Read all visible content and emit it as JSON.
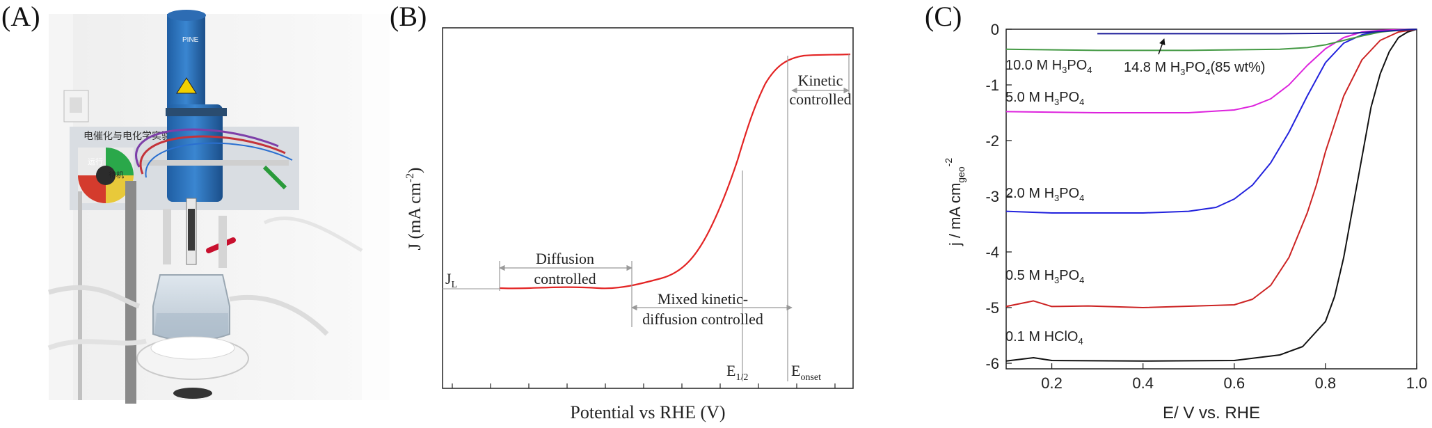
{
  "panels": {
    "a": {
      "label": "(A)"
    },
    "b": {
      "label": "(B)"
    },
    "c": {
      "label": "(C)"
    }
  },
  "photo": {
    "brand": "PINE",
    "board_text": "电催化与电化学实验",
    "button_labels": [
      "运行",
      "待机"
    ]
  },
  "chart_data": [
    {
      "type": "line",
      "panel": "B",
      "xlabel": "Potential vs RHE (V)",
      "ylabel": "J (mA cm⁻²)",
      "regions": [
        "Diffusion controlled",
        "Mixed kinetic-diffusion controlled",
        "Kinetic controlled"
      ],
      "annotations": {
        "limiting_current": "J_L",
        "half_wave": "E_1/2",
        "onset": "E_onset"
      },
      "series": [
        {
          "color": "#e32424"
        }
      ],
      "grid": false
    },
    {
      "type": "line",
      "panel": "C",
      "xlabel": "E/ V vs. RHE",
      "ylabel": "j / mA cm_geo^-2",
      "xlim": [
        0.1,
        1.0
      ],
      "ylim": [
        -6.1,
        0
      ],
      "xticks": [
        0.2,
        0.4,
        0.6,
        0.8,
        1.0
      ],
      "yticks": [
        0,
        -1,
        -2,
        -3,
        -4,
        -5,
        -6
      ],
      "grid": false,
      "series": [
        {
          "name": "0.1 M HClO4",
          "color": "#111111",
          "x": [
            0.1,
            0.16,
            0.2,
            0.4,
            0.6,
            0.7,
            0.75,
            0.8,
            0.82,
            0.84,
            0.86,
            0.88,
            0.9,
            0.92,
            0.94,
            0.96,
            0.98,
            1.0
          ],
          "y": [
            -5.96,
            -5.9,
            -5.95,
            -5.96,
            -5.95,
            -5.85,
            -5.7,
            -5.25,
            -4.8,
            -4.1,
            -3.2,
            -2.3,
            -1.4,
            -0.8,
            -0.4,
            -0.15,
            -0.05,
            0
          ]
        },
        {
          "name": "0.5 M H3PO4",
          "color": "#cc2222",
          "x": [
            0.1,
            0.16,
            0.2,
            0.28,
            0.4,
            0.6,
            0.64,
            0.68,
            0.72,
            0.76,
            0.78,
            0.8,
            0.84,
            0.88,
            0.92,
            0.96,
            1.0
          ],
          "y": [
            -4.98,
            -4.88,
            -4.98,
            -4.97,
            -5.0,
            -4.95,
            -4.85,
            -4.6,
            -4.1,
            -3.3,
            -2.8,
            -2.2,
            -1.2,
            -0.55,
            -0.2,
            -0.05,
            0
          ]
        },
        {
          "name": "2.0 M H3PO4",
          "color": "#2222dd",
          "x": [
            0.1,
            0.2,
            0.4,
            0.5,
            0.56,
            0.6,
            0.64,
            0.68,
            0.72,
            0.76,
            0.8,
            0.84,
            0.88,
            0.92,
            0.96,
            1.0
          ],
          "y": [
            -3.27,
            -3.3,
            -3.3,
            -3.27,
            -3.2,
            -3.05,
            -2.8,
            -2.4,
            -1.85,
            -1.2,
            -0.6,
            -0.25,
            -0.1,
            -0.03,
            -0.01,
            0
          ]
        },
        {
          "name": "5.0 M H3PO4",
          "color": "#dd22dd",
          "x": [
            0.1,
            0.3,
            0.5,
            0.6,
            0.64,
            0.68,
            0.72,
            0.76,
            0.8,
            0.84,
            0.88,
            0.92,
            0.96,
            1.0
          ],
          "y": [
            -1.48,
            -1.5,
            -1.5,
            -1.45,
            -1.38,
            -1.25,
            -1.0,
            -0.65,
            -0.35,
            -0.15,
            -0.05,
            -0.02,
            -0.01,
            0
          ]
        },
        {
          "name": "10.0 M H3PO4",
          "color": "#449944",
          "x": [
            0.1,
            0.3,
            0.5,
            0.7,
            0.76,
            0.8,
            0.84,
            0.88,
            0.92,
            0.96,
            1.0
          ],
          "y": [
            -0.36,
            -0.38,
            -0.38,
            -0.36,
            -0.33,
            -0.28,
            -0.2,
            -0.12,
            -0.05,
            -0.02,
            0
          ]
        },
        {
          "name": "14.8 M H3PO4(85 wt%)",
          "color": "#1a1a99",
          "x": [
            0.3,
            0.5,
            0.7,
            0.86,
            0.9,
            0.94,
            0.98,
            1.0
          ],
          "y": [
            -0.08,
            -0.08,
            -0.08,
            -0.07,
            -0.05,
            -0.03,
            -0.01,
            0
          ]
        }
      ]
    }
  ]
}
